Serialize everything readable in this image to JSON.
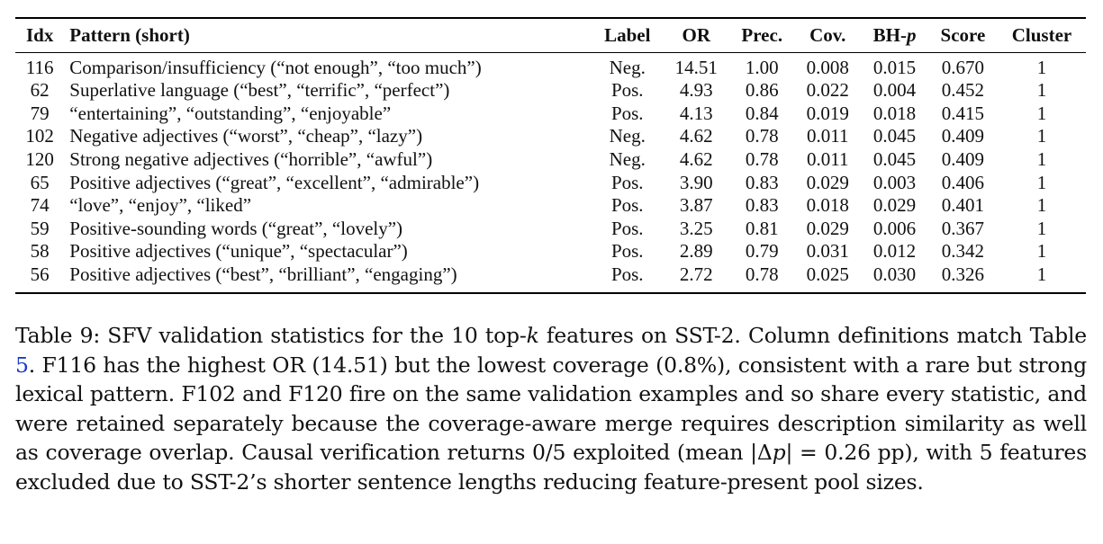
{
  "table": {
    "headers": {
      "idx": "Idx",
      "pattern": "Pattern (short)",
      "label": "Label",
      "or": "OR",
      "prec": "Prec.",
      "cov": "Cov.",
      "bh_prefix": "BH-",
      "bh_italic": "p",
      "score": "Score",
      "cluster": "Cluster"
    },
    "rows": [
      {
        "idx": "116",
        "pattern": "Comparison/insufficiency (“not enough”, “too much”)",
        "label": "Neg.",
        "or": "14.51",
        "prec": "1.00",
        "cov": "0.008",
        "bh": "0.015",
        "score": "0.670",
        "cluster": "1"
      },
      {
        "idx": "62",
        "pattern": "Superlative language (“best”, “terrific”, “perfect”)",
        "label": "Pos.",
        "or": "4.93",
        "prec": "0.86",
        "cov": "0.022",
        "bh": "0.004",
        "score": "0.452",
        "cluster": "1"
      },
      {
        "idx": "79",
        "pattern": "“entertaining”, “outstanding”, “enjoyable”",
        "label": "Pos.",
        "or": "4.13",
        "prec": "0.84",
        "cov": "0.019",
        "bh": "0.018",
        "score": "0.415",
        "cluster": "1"
      },
      {
        "idx": "102",
        "pattern": "Negative adjectives (“worst”, “cheap”, “lazy”)",
        "label": "Neg.",
        "or": "4.62",
        "prec": "0.78",
        "cov": "0.011",
        "bh": "0.045",
        "score": "0.409",
        "cluster": "1"
      },
      {
        "idx": "120",
        "pattern": "Strong negative adjectives (“horrible”, “awful”)",
        "label": "Neg.",
        "or": "4.62",
        "prec": "0.78",
        "cov": "0.011",
        "bh": "0.045",
        "score": "0.409",
        "cluster": "1"
      },
      {
        "idx": "65",
        "pattern": "Positive adjectives (“great”, “excellent”, “admirable”)",
        "label": "Pos.",
        "or": "3.90",
        "prec": "0.83",
        "cov": "0.029",
        "bh": "0.003",
        "score": "0.406",
        "cluster": "1"
      },
      {
        "idx": "74",
        "pattern": "“love”, “enjoy”, “liked”",
        "label": "Pos.",
        "or": "3.87",
        "prec": "0.83",
        "cov": "0.018",
        "bh": "0.029",
        "score": "0.401",
        "cluster": "1"
      },
      {
        "idx": "59",
        "pattern": "Positive-sounding words (“great”, “lovely”)",
        "label": "Pos.",
        "or": "3.25",
        "prec": "0.81",
        "cov": "0.029",
        "bh": "0.006",
        "score": "0.367",
        "cluster": "1"
      },
      {
        "idx": "58",
        "pattern": "Positive adjectives (“unique”, “spectacular”)",
        "label": "Pos.",
        "or": "2.89",
        "prec": "0.79",
        "cov": "0.031",
        "bh": "0.012",
        "score": "0.342",
        "cluster": "1"
      },
      {
        "idx": "56",
        "pattern": "Positive adjectives (“best”, “brilliant”, “engaging”)",
        "label": "Pos.",
        "or": "2.72",
        "prec": "0.78",
        "cov": "0.025",
        "bh": "0.030",
        "score": "0.326",
        "cluster": "1"
      }
    ]
  },
  "caption": {
    "part1": "Table 9: SFV validation statistics for the 10 top-",
    "k": "k",
    "part2": " features on SST-2. Column definitions match Table ",
    "table_ref": "5",
    "part3": ". F116 has the highest OR (14.51) but the lowest coverage (0.8%), consistent with a rare but strong lexical pattern. F102 and F120 fire on the same validation examples and so share every statistic, and were retained separately because the coverage-aware merge requires description similarity as well as coverage overlap. Causal verification returns 0/5 exploited (mean |Δ",
    "p": "p",
    "part4": "| = 0.26 pp), with 5 features excluded due to SST-2’s shorter sentence lengths reducing feature-present pool sizes."
  },
  "colors": {
    "link": "#1a3cc7",
    "text": "#111111",
    "rule": "#000000"
  }
}
